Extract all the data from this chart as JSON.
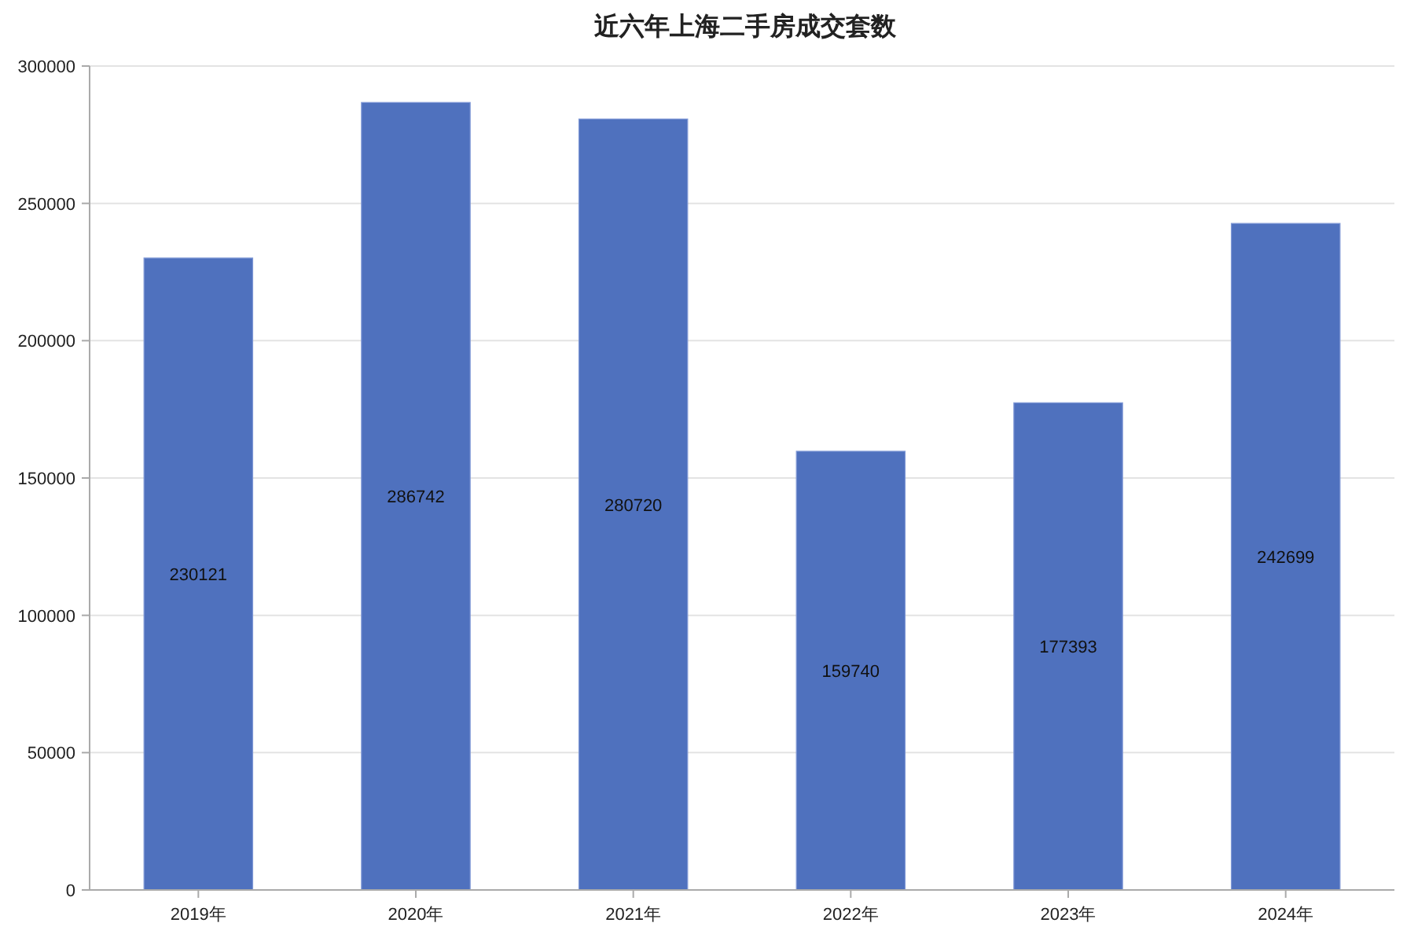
{
  "chart_data": {
    "type": "bar",
    "title": "近六年上海二手房成交套数",
    "categories": [
      "2019年",
      "2020年",
      "2021年",
      "2022年",
      "2023年",
      "2024年"
    ],
    "values": [
      230121,
      286742,
      280720,
      159740,
      177393,
      242699
    ],
    "color": "#4f71be",
    "ylim": [
      0,
      300000
    ],
    "yticks": [
      0,
      50000,
      100000,
      150000,
      200000,
      250000,
      300000
    ],
    "grid": "y",
    "data_labels": true
  }
}
